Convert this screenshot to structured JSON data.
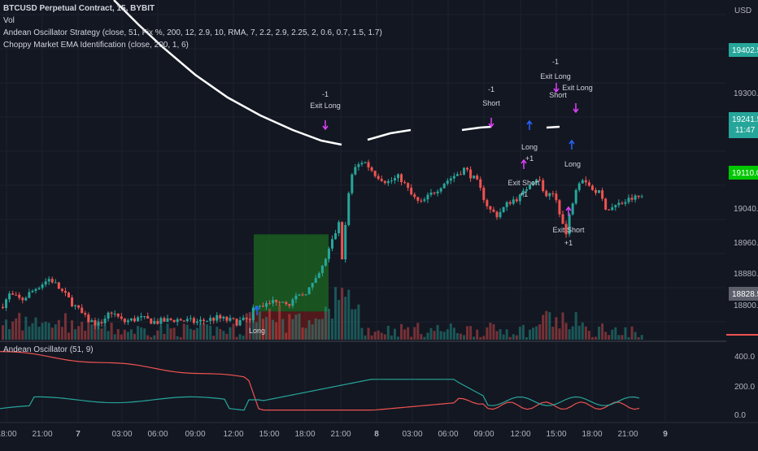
{
  "header": {
    "symbol_line": "BTCUSD Perpetual Contract, 15, BYBIT",
    "vol_label": "Vol",
    "strategy_line": "Andean Oscillator Strategy (close, 51, Fix %, 200, 12, 2.9, 10, RMA, 7, 2.2, 2.9, 2.25, 2, 0.6, 0.7, 1.5, 1.7)",
    "choppy_line": "Choppy Market EMA Identification (close, 200, 1, 6)",
    "currency": "USD"
  },
  "price_axis": {
    "ticks": [
      "19300.0",
      "19040.0",
      "18960.0",
      "18880.0",
      "18800.0"
    ],
    "badges": {
      "ema_value": "19402.5",
      "last_price": "19241.5",
      "countdown": "11:47",
      "target_price": "19110.0",
      "stop_price": "18828.5"
    },
    "colors": {
      "ema": "#26a69a",
      "last": "#26a69a",
      "target": "#00c700",
      "stop": "#5d606b"
    }
  },
  "oscillator": {
    "title": "Andean Oscillator (51, 9)",
    "ticks": [
      "400.0",
      "200.0",
      "0.0"
    ],
    "bull_color": "#26a69a",
    "bear_color": "#ef5350"
  },
  "time_axis": {
    "labels": [
      "18:00",
      "21:00",
      "7",
      "03:00",
      "06:00",
      "09:00",
      "12:00",
      "15:00",
      "18:00",
      "21:00",
      "8",
      "03:00",
      "06:00",
      "09:00",
      "12:00",
      "15:00",
      "18:00",
      "21:00",
      "9"
    ]
  },
  "signals": {
    "exit_long_1": {
      "qty": "-1",
      "label": "Exit Long"
    },
    "short_1": {
      "qty": "-1",
      "label": "Short"
    },
    "long_1": {
      "label": "Long",
      "qty": "+1"
    },
    "exit_short_1": {
      "label": "Exit Short",
      "qty": "+1"
    },
    "exit_long_2": {
      "qty": "-1",
      "label": "Exit Long"
    },
    "exit_long_3": {
      "label": "Exit Long"
    },
    "short_2": {
      "label": "Short"
    },
    "long_2": {
      "label": "Long"
    },
    "exit_short_2": {
      "label": "Exit Short",
      "qty": "+1"
    },
    "long_entry": {
      "label": "Long"
    }
  },
  "colors": {
    "up": "#26a69a",
    "down": "#ef5350",
    "signal": "#e040fb",
    "long_arrow": "#2962ff",
    "ema_line": "#ffffff",
    "profit_zone": "#1b5e20",
    "loss_zone": "#5d1a1a"
  },
  "chart_data": [
    {
      "type": "candlestick",
      "title": "BTCUSD Perpetual Contract, 15, BYBIT",
      "ylabel": "USD",
      "y_ticks": [
        18800,
        18880,
        18960,
        19040,
        19300
      ],
      "x_labels": [
        "18:00",
        "21:00",
        "7",
        "03:00",
        "06:00",
        "09:00",
        "12:00",
        "15:00",
        "18:00",
        "21:00",
        "8",
        "03:00",
        "06:00",
        "09:00",
        "12:00",
        "15:00",
        "18:00",
        "21:00",
        "9"
      ],
      "last_price": 19241.5,
      "trade_box": {
        "entry": 18828.5,
        "target": 19110.0
      }
    },
    {
      "type": "line",
      "title": "Andean Oscillator (51, 9)",
      "y_ticks": [
        0,
        200,
        400
      ],
      "series": []
    }
  ]
}
